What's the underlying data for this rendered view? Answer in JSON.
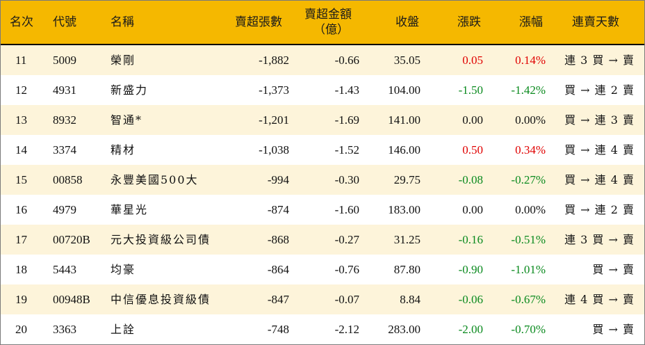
{
  "colors": {
    "header_bg": "#f5b800",
    "row_odd": "#fdf4da",
    "up": "#e00000",
    "down": "#0a8a1e"
  },
  "headers": {
    "rank": "名次",
    "code": "代號",
    "name": "名稱",
    "net_sell_lots": "賣超張數",
    "net_sell_amount": "賣超金額",
    "net_sell_amount_unit": "（億）",
    "close": "收盤",
    "change": "漲跌",
    "change_pct": "漲幅",
    "consecutive_days": "連賣天數"
  },
  "rows": [
    {
      "rank": "11",
      "code": "5009",
      "name": "榮剛",
      "lots": "-1,882",
      "amount": "-0.66",
      "close": "35.05",
      "change": "0.05",
      "pct": "0.14%",
      "trend": "up",
      "cons": "連 3 買 → 賣"
    },
    {
      "rank": "12",
      "code": "4931",
      "name": "新盛力",
      "lots": "-1,373",
      "amount": "-1.43",
      "close": "104.00",
      "change": "-1.50",
      "pct": "-1.42%",
      "trend": "down",
      "cons": "買 → 連 2 賣"
    },
    {
      "rank": "13",
      "code": "8932",
      "name": "智通*",
      "lots": "-1,201",
      "amount": "-1.69",
      "close": "141.00",
      "change": "0.00",
      "pct": "0.00%",
      "trend": "flat",
      "cons": "買 → 連 3 賣"
    },
    {
      "rank": "14",
      "code": "3374",
      "name": "精材",
      "lots": "-1,038",
      "amount": "-1.52",
      "close": "146.00",
      "change": "0.50",
      "pct": "0.34%",
      "trend": "up",
      "cons": "買 → 連 4 賣"
    },
    {
      "rank": "15",
      "code": "00858",
      "name": "永豐美國500大",
      "lots": "-994",
      "amount": "-0.30",
      "close": "29.75",
      "change": "-0.08",
      "pct": "-0.27%",
      "trend": "down",
      "cons": "買 → 連 4 賣"
    },
    {
      "rank": "16",
      "code": "4979",
      "name": "華星光",
      "lots": "-874",
      "amount": "-1.60",
      "close": "183.00",
      "change": "0.00",
      "pct": "0.00%",
      "trend": "flat",
      "cons": "買 → 連 2 賣"
    },
    {
      "rank": "17",
      "code": "00720B",
      "name": "元大投資級公司債",
      "lots": "-868",
      "amount": "-0.27",
      "close": "31.25",
      "change": "-0.16",
      "pct": "-0.51%",
      "trend": "down",
      "cons": "連 3 買 → 賣"
    },
    {
      "rank": "18",
      "code": "5443",
      "name": "均豪",
      "lots": "-864",
      "amount": "-0.76",
      "close": "87.80",
      "change": "-0.90",
      "pct": "-1.01%",
      "trend": "down",
      "cons": "買 → 賣"
    },
    {
      "rank": "19",
      "code": "00948B",
      "name": "中信優息投資級債",
      "lots": "-847",
      "amount": "-0.07",
      "close": "8.84",
      "change": "-0.06",
      "pct": "-0.67%",
      "trend": "down",
      "cons": "連 4 買 → 賣"
    },
    {
      "rank": "20",
      "code": "3363",
      "name": "上詮",
      "lots": "-748",
      "amount": "-2.12",
      "close": "283.00",
      "change": "-2.00",
      "pct": "-0.70%",
      "trend": "down",
      "cons": "買 → 賣"
    }
  ]
}
